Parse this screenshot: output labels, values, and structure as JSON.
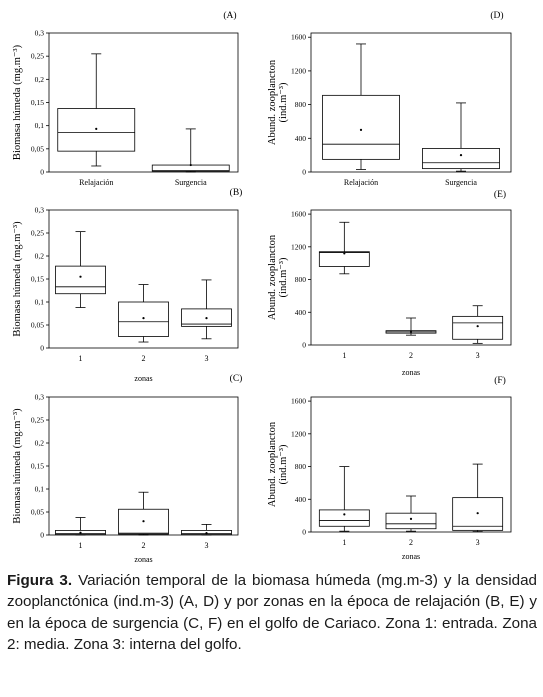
{
  "panels": [
    {
      "id": "A",
      "letter": "(A)",
      "ylabel": "Biomasa húmeda (mg.m⁻³)",
      "xlabel": "",
      "chart_data": {
        "type": "box",
        "ylim": [
          0,
          0.3
        ],
        "yticks": [
          "0",
          "0,05",
          "0,1",
          "0,15",
          "0,2",
          "0,25",
          "0,3"
        ],
        "categories": [
          "Relajación",
          "Surgencia"
        ],
        "boxes": [
          {
            "min": 0.013,
            "q1": 0.045,
            "median": 0.085,
            "q3": 0.137,
            "max": 0.255,
            "mean": 0.093
          },
          {
            "min": 0.0,
            "q1": 0.002,
            "median": 0.003,
            "q3": 0.015,
            "max": 0.093,
            "mean": 0.015
          }
        ]
      }
    },
    {
      "id": "D",
      "letter": "(D)",
      "ylabel": "Abund. zooplancton (ind.m⁻³)",
      "xlabel": "",
      "chart_data": {
        "type": "box",
        "ylim": [
          0,
          1650
        ],
        "yticks": [
          "0",
          "400",
          "800",
          "1200",
          "1600"
        ],
        "categories": [
          "Relajación",
          "Surgencia"
        ],
        "boxes": [
          {
            "min": 30,
            "q1": 150,
            "median": 330,
            "q3": 910,
            "max": 1520,
            "mean": 500
          },
          {
            "min": 10,
            "q1": 40,
            "median": 110,
            "q3": 280,
            "max": 820,
            "mean": 200
          }
        ]
      }
    },
    {
      "id": "B",
      "letter": "(B)",
      "ylabel": "Biomasa húmeda (mg.m⁻³)",
      "xlabel": "zonas",
      "chart_data": {
        "type": "box",
        "ylim": [
          0,
          0.3
        ],
        "yticks": [
          "0",
          "0,05",
          "0,1",
          "0,15",
          "0,2",
          "0,25",
          "0,3"
        ],
        "categories": [
          "1",
          "2",
          "3"
        ],
        "boxes": [
          {
            "min": 0.088,
            "q1": 0.118,
            "median": 0.133,
            "q3": 0.178,
            "max": 0.253,
            "mean": 0.155
          },
          {
            "min": 0.013,
            "q1": 0.025,
            "median": 0.057,
            "q3": 0.1,
            "max": 0.138,
            "mean": 0.065
          },
          {
            "min": 0.02,
            "q1": 0.047,
            "median": 0.052,
            "q3": 0.085,
            "max": 0.148,
            "mean": 0.065
          }
        ]
      }
    },
    {
      "id": "E",
      "letter": "(E)",
      "ylabel": "Abund. zooplancton (ind.m⁻³)",
      "xlabel": "zonas",
      "chart_data": {
        "type": "box",
        "ylim": [
          0,
          1650
        ],
        "yticks": [
          "0",
          "400",
          "800",
          "1200",
          "1600"
        ],
        "categories": [
          "1",
          "2",
          "3"
        ],
        "boxes": [
          {
            "min": 870,
            "q1": 960,
            "median": 1130,
            "q3": 1140,
            "max": 1500,
            "mean": 1120
          },
          {
            "min": 120,
            "q1": 145,
            "median": 160,
            "q3": 175,
            "max": 330,
            "mean": 160
          },
          {
            "min": 20,
            "q1": 70,
            "median": 270,
            "q3": 350,
            "max": 480,
            "mean": 230
          }
        ]
      }
    },
    {
      "id": "C",
      "letter": "(C)",
      "ylabel": "Biomasa húmeda (mg.m⁻³)",
      "xlabel": "zonas",
      "chart_data": {
        "type": "box",
        "ylim": [
          0,
          0.3
        ],
        "yticks": [
          "0",
          "0,05",
          "0,1",
          "0,15",
          "0,2",
          "0,25",
          "0,3"
        ],
        "categories": [
          "1",
          "2",
          "3"
        ],
        "boxes": [
          {
            "min": 0.0,
            "q1": 0.001,
            "median": 0.003,
            "q3": 0.01,
            "max": 0.038,
            "mean": 0.005
          },
          {
            "min": 0.0,
            "q1": 0.002,
            "median": 0.004,
            "q3": 0.056,
            "max": 0.093,
            "mean": 0.03
          },
          {
            "min": 0.0,
            "q1": 0.001,
            "median": 0.003,
            "q3": 0.01,
            "max": 0.023,
            "mean": 0.004
          }
        ]
      }
    },
    {
      "id": "F",
      "letter": "(F)",
      "ylabel": "Abund. zooplancton (ind.m⁻³)",
      "xlabel": "zonas",
      "chart_data": {
        "type": "box",
        "ylim": [
          0,
          1650
        ],
        "yticks": [
          "0",
          "400",
          "800",
          "1200",
          "1600"
        ],
        "categories": [
          "1",
          "2",
          "3"
        ],
        "boxes": [
          {
            "min": 10,
            "q1": 70,
            "median": 140,
            "q3": 270,
            "max": 800,
            "mean": 215
          },
          {
            "min": 10,
            "q1": 40,
            "median": 100,
            "q3": 230,
            "max": 440,
            "mean": 160
          },
          {
            "min": 5,
            "q1": 20,
            "median": 70,
            "q3": 420,
            "max": 830,
            "mean": 230
          }
        ]
      }
    }
  ],
  "caption": {
    "label": "Figura 3.",
    "text": " Variación temporal de la biomasa húmeda (mg.m-3) y la densidad zooplanctónica (ind.m-3) (A, D) y por zonas en la época de relajación (B, E) y en la época de surgencia (C, F) en el golfo de Cariaco. Zona 1: entrada. Zona 2: media. Zona 3: interna del golfo."
  }
}
